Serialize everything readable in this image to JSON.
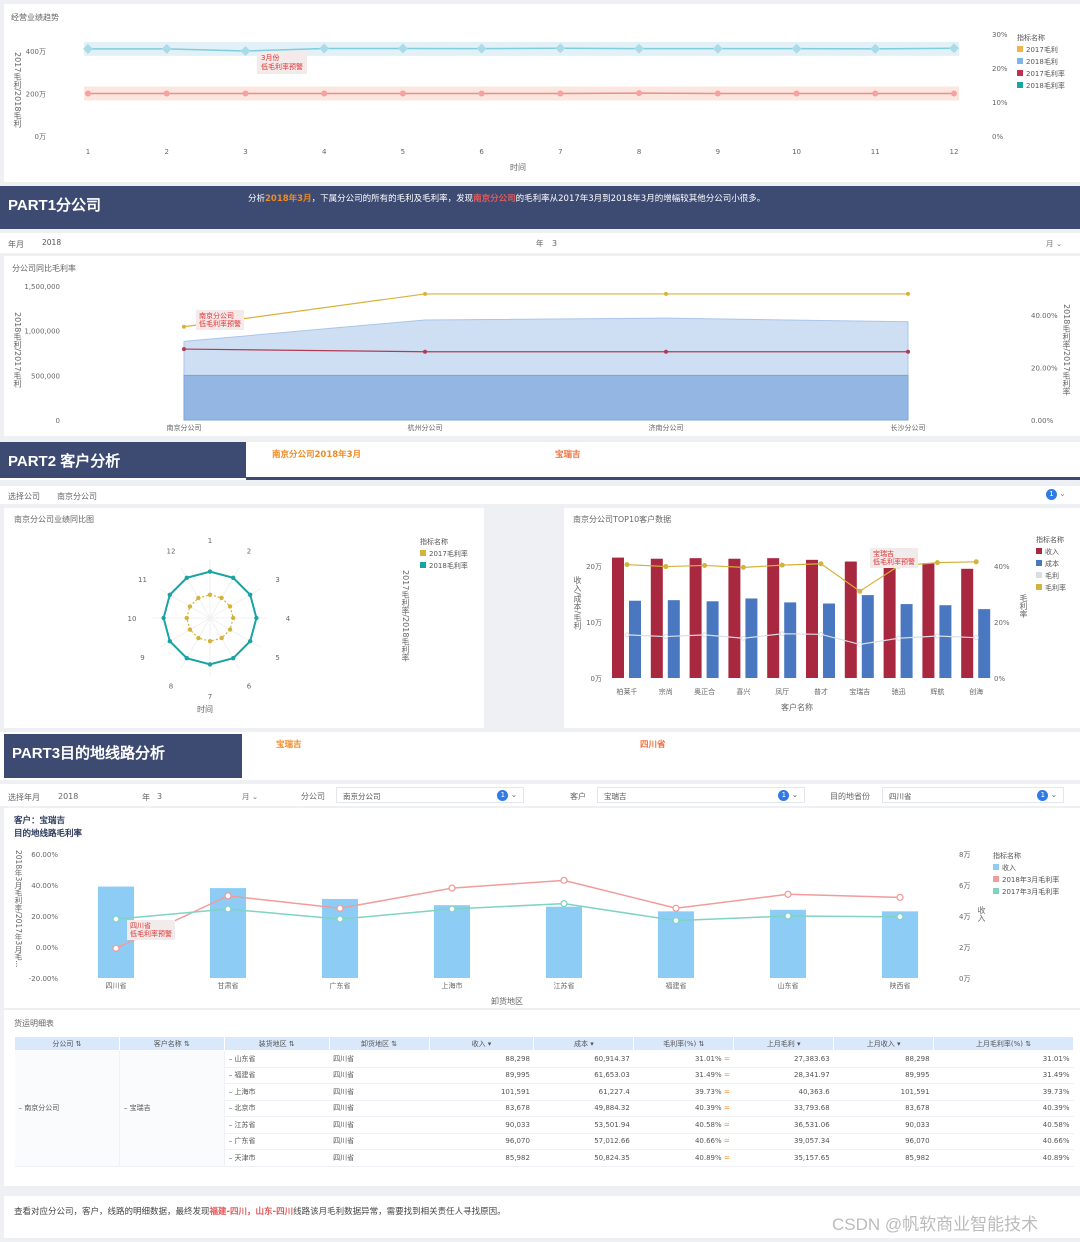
{
  "top": {
    "title": "经营业绩趋势",
    "ylabel": "2017毛利/2018毛利",
    "xlabel": "时间",
    "ann": [
      "3月份",
      "低毛利率预警"
    ],
    "legend_title": "指标名称",
    "legend": [
      {
        "name": "2017毛利",
        "color": "#f3b24c"
      },
      {
        "name": "2018毛利",
        "color": "#7fb4e6"
      },
      {
        "name": "2017毛利率",
        "color": "#c0304c"
      },
      {
        "name": "2018毛利率",
        "color": "#1aa3a3"
      }
    ]
  },
  "part1": {
    "title": "PART1分公司",
    "desc_a": "分析",
    "desc_b": "2018年3月",
    "desc_c": "，下属分公司的所有的毛利及毛利率，发现",
    "desc_d": "南京分公司",
    "desc_e": "的毛利率从2017年3月到2018年3月的增幅较其他分公司小很多。"
  },
  "filter1": {
    "label": "年月",
    "year": "2018",
    "year_unit": "年",
    "month": "3",
    "month_unit": "月"
  },
  "p1chart": {
    "title": "分公司同比毛利率",
    "ylabel": "2018毛利/2017毛利",
    "y2label": "2018毛利率/2017毛利率",
    "ann": [
      "南京分公司",
      "低毛利率预警"
    ]
  },
  "part2": {
    "title": "PART2 客户分析",
    "tag1": "南京分公司2018年3月",
    "tag2": "宝瑞吉"
  },
  "filter2": {
    "label": "选择公司",
    "value": "南京分公司",
    "badge": "1"
  },
  "radar": {
    "title": "南京分公司业绩同比图",
    "xlabel": "时间",
    "ylabel": "2017毛利率/2018毛利率",
    "legend_title": "指标名称",
    "legend": [
      {
        "name": "2017毛利率",
        "color": "#d4b33c"
      },
      {
        "name": "2018毛利率",
        "color": "#1aa3a3"
      }
    ]
  },
  "top10": {
    "title": "南京分公司TOP10客户数据",
    "ylabel": "收入/成本/毛利",
    "y2label": "毛利率",
    "xlabel": "客户名称",
    "ann": [
      "宝瑞吉",
      "低毛利率预警"
    ],
    "legend_title": "指标名称",
    "legend": [
      {
        "name": "收入",
        "color": "#a8283f"
      },
      {
        "name": "成本",
        "color": "#4a78c0"
      },
      {
        "name": "毛利",
        "color": "#d9dde4"
      },
      {
        "name": "毛利率",
        "color": "#d4b33c"
      }
    ]
  },
  "part3": {
    "title": "PART3目的地线路分析",
    "tag1": "宝瑞吉",
    "tag2": "四川省"
  },
  "filter3": {
    "label": "选择年月",
    "year": "2018",
    "year_unit": "年",
    "month": "3",
    "month_unit": "月",
    "company_label": "分公司",
    "company": "南京分公司",
    "customer_label": "客户",
    "customer": "宝瑞吉",
    "dest_label": "目的地省份",
    "dest": "四川省",
    "badge": "1"
  },
  "route": {
    "t1": "客户：宝瑞吉",
    "t2": "目的地线路毛利率",
    "ylabel": "2018年3月毛利率/2017年3月毛...",
    "y2label": "收入",
    "xlabel": "卸货地区",
    "ann": [
      "四川省",
      "低毛利率预警"
    ],
    "legend_title": "指标名称",
    "legend": [
      {
        "name": "收入",
        "color": "#8dcdf5"
      },
      {
        "name": "2018年3月毛利率",
        "color": "#f29b9b"
      },
      {
        "name": "2017年3月毛利率",
        "color": "#7fd3c4"
      }
    ]
  },
  "table": {
    "title": "货运明细表",
    "headers": [
      "分公司",
      "客户名称",
      "装货地区",
      "卸货地区",
      "收入",
      "成本",
      "毛利率(%)",
      "上月毛利",
      "上月收入",
      "上月毛利率(%)"
    ],
    "company": "南京分公司",
    "customer": "宝瑞吉",
    "rows": [
      [
        "山东省",
        "四川省",
        "88,298",
        "60,914.37",
        "31.01%",
        "27,383.63",
        "88,298",
        "31.01%"
      ],
      [
        "福建省",
        "四川省",
        "89,995",
        "61,653.03",
        "31.49%",
        "28,341.97",
        "89,995",
        "31.49%"
      ],
      [
        "上海市",
        "四川省",
        "101,591",
        "61,227.4",
        "39.73%",
        "40,363.6",
        "101,591",
        "39.73%"
      ],
      [
        "北京市",
        "四川省",
        "83,678",
        "49,884.32",
        "40.39%",
        "33,793.68",
        "83,678",
        "40.39%"
      ],
      [
        "江苏省",
        "四川省",
        "90,033",
        "53,501.94",
        "40.58%",
        "36,531.06",
        "90,033",
        "40.58%"
      ],
      [
        "广东省",
        "四川省",
        "96,070",
        "57,012.66",
        "40.66%",
        "39,057.34",
        "96,070",
        "40.66%"
      ],
      [
        "天津市",
        "四川省",
        "85,982",
        "50,824.35",
        "40.89%",
        "35,157.65",
        "85,982",
        "40.89%"
      ]
    ]
  },
  "footer": {
    "a": "查看对应分公司，客户，线路的明细数据，最终发现",
    "b": "福建-四川，山东-四川",
    "c": "线路该月毛利数据异常，需要找到相关责任人寻找原因。"
  },
  "watermark": "CSDN @帆软商业智能技术",
  "chart_data": [
    {
      "type": "line",
      "title": "经营业绩趋势",
      "x": [
        1,
        2,
        3,
        4,
        5,
        6,
        7,
        8,
        9,
        10,
        11,
        12
      ],
      "xlabel": "时间",
      "ylabel": "2017毛利/2018毛利",
      "y_ticks": [
        "0万",
        "200万",
        "400万"
      ],
      "y2_ticks": [
        "0%",
        "10%",
        "20%",
        "30%"
      ],
      "series": [
        {
          "name": "2018毛利",
          "values": [
            410,
            410,
            400,
            412,
            412,
            411,
            413,
            411,
            411,
            411,
            410,
            413
          ]
        },
        {
          "name": "2017毛利",
          "values": [
            200,
            200,
            200,
            200,
            200,
            200,
            200,
            202,
            200,
            200,
            200,
            200
          ]
        }
      ]
    },
    {
      "type": "area",
      "title": "分公司同比毛利率",
      "categories": [
        "南京分公司",
        "杭州分公司",
        "济南分公司",
        "长沙分公司"
      ],
      "y_ticks": [
        "0",
        "500,000",
        "1,000,000",
        "1,500,000"
      ],
      "y2_ticks": [
        "0.00%",
        "20.00%",
        "40.00%"
      ],
      "series": [
        {
          "name": "2018毛利",
          "values": [
            880000,
            1120000,
            1140000,
            1100000
          ]
        },
        {
          "name": "2017毛利",
          "values": [
            500000,
            500000,
            500000,
            500000
          ]
        },
        {
          "name": "2018毛利率",
          "values": [
            35.5,
            48,
            48,
            48
          ]
        },
        {
          "name": "2017毛利率",
          "values": [
            27,
            26,
            26,
            26
          ]
        }
      ]
    },
    {
      "type": "radar",
      "title": "南京分公司业绩同比图",
      "categories": [
        "1",
        "2",
        "3",
        "4",
        "5",
        "6",
        "7",
        "8",
        "9",
        "10",
        "11",
        "12"
      ],
      "series": [
        {
          "name": "2018毛利率",
          "values": [
            0.8,
            0.8,
            0.8,
            0.8,
            0.8,
            0.8,
            0.8,
            0.8,
            0.8,
            0.8,
            0.8,
            0.8
          ]
        },
        {
          "name": "2017毛利率",
          "values": [
            0.4,
            0.4,
            0.4,
            0.4,
            0.4,
            0.4,
            0.4,
            0.4,
            0.4,
            0.4,
            0.4,
            0.4
          ]
        }
      ]
    },
    {
      "type": "bar",
      "title": "南京分公司TOP10客户数据",
      "categories": [
        "柏莱千",
        "宗尚",
        "奥正合",
        "喜兴",
        "凤厅",
        "普才",
        "宝瑞吉",
        "驰迅",
        "辉航",
        "创海"
      ],
      "y_ticks": [
        "0万",
        "10万",
        "20万"
      ],
      "y2_ticks": [
        "0%",
        "20%",
        "40%"
      ],
      "series": [
        {
          "name": "收入",
          "values": [
            21.5,
            21.3,
            21.4,
            21.3,
            21.4,
            21.1,
            20.8,
            20.3,
            20.5,
            19.5
          ]
        },
        {
          "name": "成本",
          "values": [
            13.8,
            13.9,
            13.7,
            14.2,
            13.5,
            13.3,
            14.8,
            13.2,
            13.0,
            12.3
          ]
        },
        {
          "name": "毛利",
          "values": [
            7.7,
            7.4,
            7.7,
            7.1,
            7.9,
            7.8,
            6.0,
            7.1,
            7.5,
            7.2
          ]
        },
        {
          "name": "毛利率",
          "values": [
            40.5,
            39.8,
            40.2,
            39.5,
            40.3,
            40.8,
            31.0,
            40.0,
            41.2,
            41.5
          ]
        }
      ]
    },
    {
      "type": "bar",
      "title": "目的地线路毛利率",
      "categories": [
        "四川省",
        "甘肃省",
        "广东省",
        "上海市",
        "江苏省",
        "福建省",
        "山东省",
        "陕西省"
      ],
      "xlabel": "卸货地区",
      "y_ticks": [
        "-20.00%",
        "0.00%",
        "20.00%",
        "40.00%",
        "60.00%"
      ],
      "y2_ticks": [
        "0万",
        "2万",
        "4万",
        "6万",
        "8万"
      ],
      "series": [
        {
          "name": "收入",
          "values": [
            5.9,
            5.8,
            5.1,
            4.7,
            4.6,
            4.3,
            4.4,
            4.3
          ]
        },
        {
          "name": "2018年3月毛利率",
          "values": [
            -0.8,
            33,
            25,
            38,
            43,
            25,
            34,
            32
          ]
        },
        {
          "name": "2017年3月毛利率",
          "values": [
            18,
            24.5,
            18,
            24.5,
            28,
            17,
            20,
            19.5
          ]
        }
      ]
    }
  ]
}
